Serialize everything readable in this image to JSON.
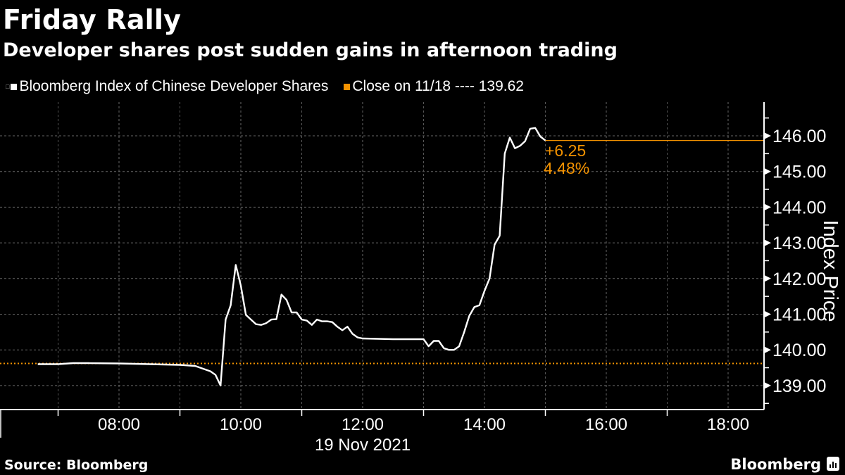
{
  "header": {
    "title": "Friday Rally",
    "subtitle": "Developer shares post sudden gains in afternoon trading"
  },
  "legend": {
    "items": [
      {
        "label": "Bloomberg Index of Chinese Developer Shares",
        "color": "#ffffff"
      },
      {
        "label": "Close on 11/18 ---- 139.62",
        "color": "#f39200"
      }
    ]
  },
  "annotation": {
    "change": "+6.25",
    "pct": "4.48%"
  },
  "footer": {
    "source": "Source: Bloomberg",
    "brand": "Bloomberg"
  },
  "colors": {
    "background": "#000000",
    "line": "#ffffff",
    "reference": "#f39200",
    "grid": "#666666"
  },
  "chart_data": {
    "type": "line",
    "title": "Friday Rally",
    "subtitle": "Developer shares post sudden gains in afternoon trading",
    "xlabel": "19 Nov 2021",
    "ylabel": "Index Price",
    "x_ticks": [
      "08:00",
      "10:00",
      "12:00",
      "14:00",
      "16:00",
      "18:00"
    ],
    "y_ticks": [
      "139.00",
      "140.00",
      "141.00",
      "142.00",
      "143.00",
      "144.00",
      "145.00",
      "146.00"
    ],
    "ylim": [
      138.4,
      146.9
    ],
    "xlim": [
      "06:03",
      "18:35"
    ],
    "grid": true,
    "legend_position": "top-left",
    "reference_line": {
      "name": "Close on 11/18",
      "value": 139.62
    },
    "series": [
      {
        "name": "Bloomberg Index of Chinese Developer Shares",
        "x": [
          "06:40",
          "07:00",
          "07:15",
          "07:30",
          "08:00",
          "08:30",
          "09:00",
          "09:15",
          "09:30",
          "09:35",
          "09:40",
          "09:45",
          "09:50",
          "09:55",
          "10:00",
          "10:05",
          "10:10",
          "10:15",
          "10:20",
          "10:25",
          "10:30",
          "10:35",
          "10:40",
          "10:45",
          "10:50",
          "10:55",
          "11:00",
          "11:05",
          "11:10",
          "11:15",
          "11:20",
          "11:25",
          "11:30",
          "11:35",
          "11:40",
          "11:45",
          "11:50",
          "11:55",
          "12:00",
          "12:30",
          "13:00",
          "13:05",
          "13:10",
          "13:15",
          "13:20",
          "13:25",
          "13:30",
          "13:35",
          "13:40",
          "13:45",
          "13:50",
          "13:55",
          "14:00",
          "14:05",
          "14:10",
          "14:15",
          "14:20",
          "14:25",
          "14:30",
          "14:35",
          "14:40",
          "14:45",
          "14:50",
          "14:55",
          "15:00"
        ],
        "values": [
          139.6,
          139.6,
          139.63,
          139.63,
          139.62,
          139.6,
          139.58,
          139.55,
          139.4,
          139.3,
          139.0,
          140.85,
          141.25,
          142.38,
          141.8,
          140.98,
          140.85,
          140.72,
          140.7,
          140.75,
          140.85,
          140.86,
          141.55,
          141.4,
          141.05,
          141.05,
          140.85,
          140.82,
          140.7,
          140.85,
          140.8,
          140.8,
          140.78,
          140.65,
          140.55,
          140.65,
          140.45,
          140.35,
          140.32,
          140.3,
          140.3,
          140.1,
          140.25,
          140.25,
          140.05,
          140.0,
          140.0,
          140.1,
          140.5,
          140.95,
          141.2,
          141.25,
          141.65,
          142.0,
          142.95,
          143.2,
          145.5,
          145.95,
          145.65,
          145.72,
          145.85,
          146.2,
          146.22,
          145.98,
          145.87
        ]
      }
    ],
    "annotations": [
      {
        "text": "+6.25",
        "color": "#f39200"
      },
      {
        "text": "4.48%",
        "color": "#f39200"
      }
    ],
    "last_value": 145.87
  }
}
